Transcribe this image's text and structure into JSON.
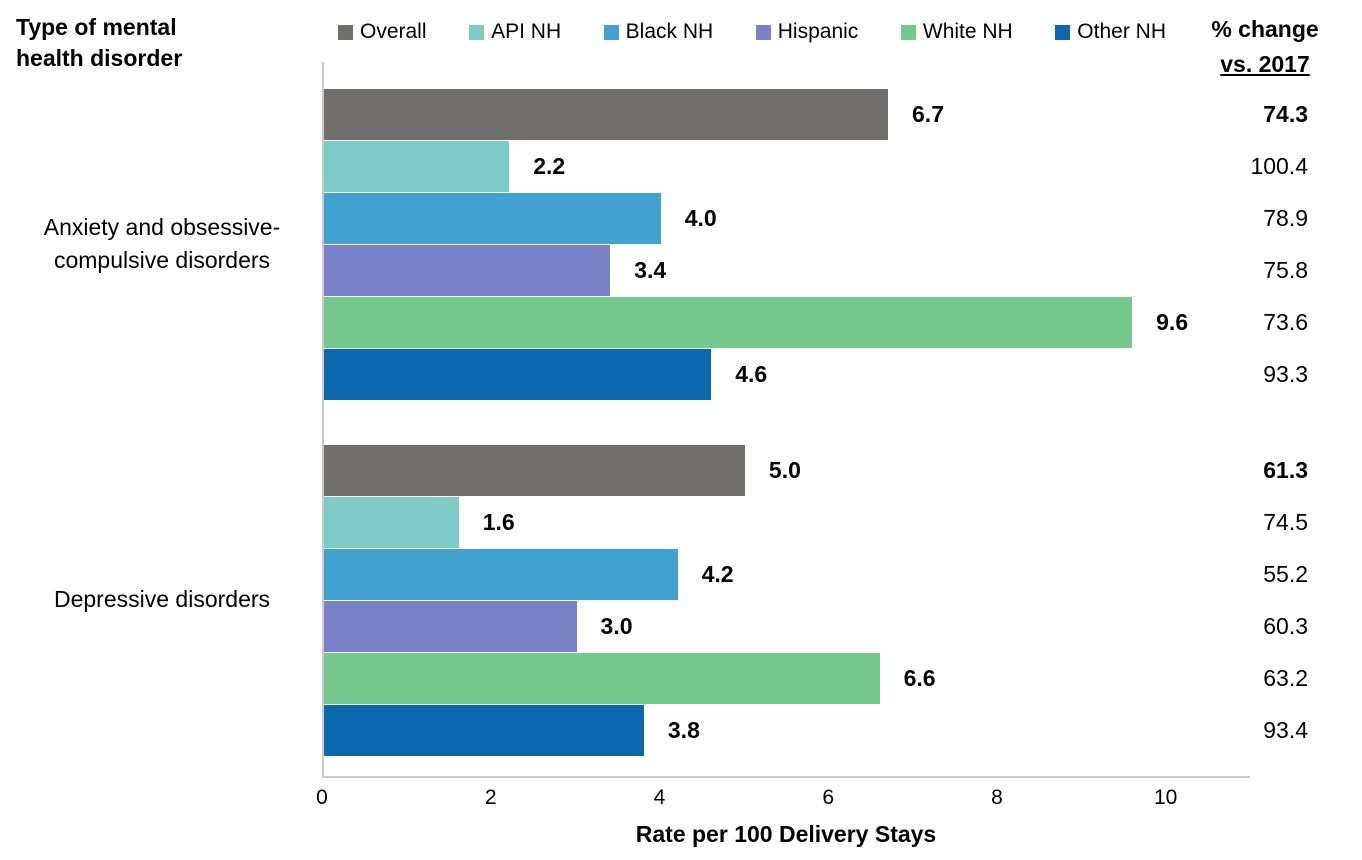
{
  "header": {
    "row_axis_title": "Type of mental health disorder",
    "pct_change_line1": "% change",
    "pct_change_line2": "vs. 2017"
  },
  "legend": [
    {
      "label": "Overall",
      "color": "#716E6E"
    },
    {
      "label": "API NH",
      "color": "#7CCBC4"
    },
    {
      "label": "Black NH",
      "color": "#42A1CF"
    },
    {
      "label": "Hispanic",
      "color": "#7A82C7"
    },
    {
      "label": "White NH",
      "color": "#74C98C"
    },
    {
      "label": "Other NH",
      "color": "#0C67AD"
    }
  ],
  "chart_data": {
    "type": "bar",
    "orientation": "horizontal",
    "xlabel": "Rate per 100 Delivery Stays",
    "row_axis_label": "Type of mental health disorder",
    "pct_change_header": "% change vs. 2017",
    "x_ticks": [
      "0",
      "2",
      "4",
      "6",
      "8",
      "10"
    ],
    "xlim": [
      0,
      11
    ],
    "grid": false,
    "legend_position": "top",
    "series": [
      "Overall",
      "API NH",
      "Black NH",
      "Hispanic",
      "White NH",
      "Other NH"
    ],
    "groups": [
      {
        "category": "Anxiety and obsessive-compulsive disorders",
        "bars": [
          {
            "series": "Overall",
            "value": 6.7,
            "label": "6.7",
            "pct_change_vs_2017": "74.3",
            "color": "#716E6E",
            "pct_bold": true
          },
          {
            "series": "API NH",
            "value": 2.2,
            "label": "2.2",
            "pct_change_vs_2017": "100.4",
            "color": "#7CCBC4",
            "pct_bold": false
          },
          {
            "series": "Black NH",
            "value": 4.0,
            "label": "4.0",
            "pct_change_vs_2017": "78.9",
            "color": "#42A1CF",
            "pct_bold": false
          },
          {
            "series": "Hispanic",
            "value": 3.4,
            "label": "3.4",
            "pct_change_vs_2017": "75.8",
            "color": "#7A82C7",
            "pct_bold": false
          },
          {
            "series": "White NH",
            "value": 9.6,
            "label": "9.6",
            "pct_change_vs_2017": "73.6",
            "color": "#74C98C",
            "pct_bold": false
          },
          {
            "series": "Other NH",
            "value": 4.6,
            "label": "4.6",
            "pct_change_vs_2017": "93.3",
            "color": "#0C67AD",
            "pct_bold": false
          }
        ]
      },
      {
        "category": "Depressive disorders",
        "bars": [
          {
            "series": "Overall",
            "value": 5.0,
            "label": "5.0",
            "pct_change_vs_2017": "61.3",
            "color": "#716E6E",
            "pct_bold": true
          },
          {
            "series": "API NH",
            "value": 1.6,
            "label": "1.6",
            "pct_change_vs_2017": "74.5",
            "color": "#7CCBC4",
            "pct_bold": false
          },
          {
            "series": "Black NH",
            "value": 4.2,
            "label": "4.2",
            "pct_change_vs_2017": "55.2",
            "color": "#42A1CF",
            "pct_bold": false
          },
          {
            "series": "Hispanic",
            "value": 3.0,
            "label": "3.0",
            "pct_change_vs_2017": "60.3",
            "color": "#7A82C7",
            "pct_bold": false
          },
          {
            "series": "White NH",
            "value": 6.6,
            "label": "6.6",
            "pct_change_vs_2017": "63.2",
            "color": "#74C98C",
            "pct_bold": false
          },
          {
            "series": "Other NH",
            "value": 3.8,
            "label": "3.8",
            "pct_change_vs_2017": "93.4",
            "color": "#0C67AD",
            "pct_bold": false
          }
        ]
      }
    ]
  }
}
